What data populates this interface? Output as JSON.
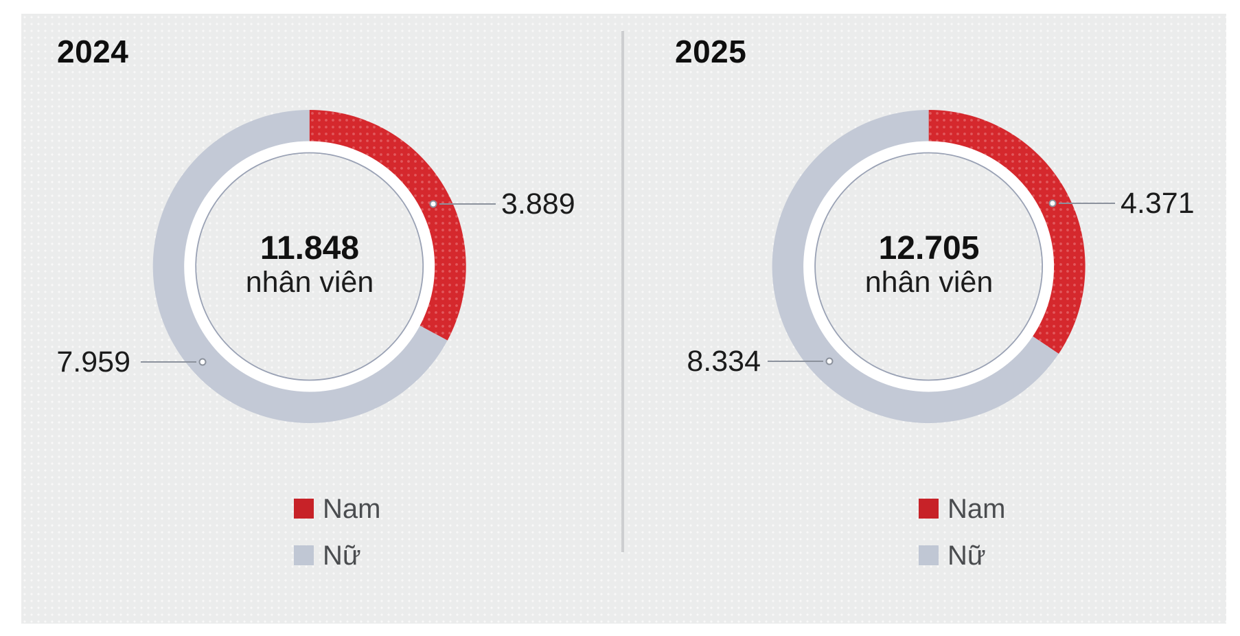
{
  "page": {
    "background": "#ffffff",
    "panel_background": "#ebecec",
    "panel_dot_color": "#f8f8f8"
  },
  "colors": {
    "male_segment": "#d5282d",
    "male_texture_dot": "#e2595d",
    "female_segment": "#c3c9d6",
    "legend_male_swatch": "#c72228",
    "legend_female_swatch": "#c0c7d4",
    "leader_line": "#8b919c",
    "inner_ring_stroke": "#99a1b4",
    "separator": "#cdced0",
    "callout_text": "#1b1b1b",
    "legend_text": "#4a4c4f"
  },
  "charts": [
    {
      "title": "2024",
      "center_value": "11.848",
      "center_label": "nhân viên",
      "labels": {
        "male": "3.889",
        "female": "7.959"
      },
      "legend": {
        "male": "Nam",
        "female": "Nữ"
      }
    },
    {
      "title": "2025",
      "center_value": "12.705",
      "center_label": "nhân viên",
      "labels": {
        "male": "4.371",
        "female": "8.334"
      },
      "legend": {
        "male": "Nam",
        "female": "Nữ"
      }
    }
  ],
  "chart_data": [
    {
      "type": "pie",
      "subtype": "donut",
      "title": "2024",
      "center_text": [
        "11.848",
        "nhân viên"
      ],
      "total": 11848,
      "series": [
        {
          "name": "Nam",
          "value": 3889,
          "color": "#d5282d",
          "texture": "dots"
        },
        {
          "name": "Nữ",
          "value": 7959,
          "color": "#c3c9d6",
          "texture": "solid"
        }
      ],
      "start_angle_deg": 0,
      "direction": "clockwise",
      "legend_position": "bottom",
      "callouts": [
        {
          "series": "Nam",
          "label": "3.889",
          "side": "right"
        },
        {
          "series": "Nữ",
          "label": "7.959",
          "side": "left"
        }
      ]
    },
    {
      "type": "pie",
      "subtype": "donut",
      "title": "2025",
      "center_text": [
        "12.705",
        "nhân viên"
      ],
      "total": 12705,
      "series": [
        {
          "name": "Nam",
          "value": 4371,
          "color": "#d5282d",
          "texture": "dots"
        },
        {
          "name": "Nữ",
          "value": 8334,
          "color": "#c3c9d6",
          "texture": "solid"
        }
      ],
      "start_angle_deg": 0,
      "direction": "clockwise",
      "legend_position": "bottom",
      "callouts": [
        {
          "series": "Nam",
          "label": "4.371",
          "side": "right"
        },
        {
          "series": "Nữ",
          "label": "8.334",
          "side": "left"
        }
      ]
    }
  ]
}
